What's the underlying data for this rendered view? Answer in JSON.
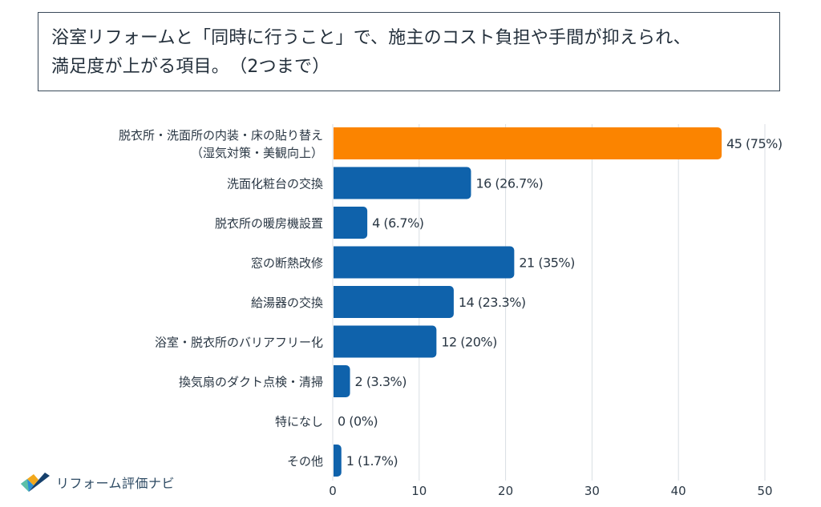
{
  "title": {
    "line1": "浴室リフォームと「同時に行うこと」で、施主のコスト負担や手間が抑えられ、",
    "line2": "満足度が上がる項目。　（2つまで）"
  },
  "logo": {
    "text": "リフォーム評価ナビ",
    "icon": "check-leaf-icon"
  },
  "colors": {
    "highlight": "#fb8400",
    "bar": "#0f62ab",
    "grid": "#d9dee3",
    "label": "#2a3744"
  },
  "chart_data": {
    "type": "bar",
    "orientation": "horizontal",
    "title": "浴室リフォームと「同時に行うこと」で、施主のコスト負担や手間が抑えられ、満足度が上がる項目。　（2つまで）",
    "categories": [
      [
        "脱衣所・洗面所の内装・床の貼り替え",
        "（湿気対策・美観向上）"
      ],
      [
        "洗面化粧台の交換"
      ],
      [
        "脱衣所の暖房機設置"
      ],
      [
        "窓の断熱改修"
      ],
      [
        "給湯器の交換"
      ],
      [
        "浴室・脱衣所のバリアフリー化"
      ],
      [
        "換気扇のダクト点検・清掃"
      ],
      [
        "特になし"
      ],
      [
        "その他"
      ]
    ],
    "values": [
      45,
      16,
      4,
      21,
      14,
      12,
      2,
      0,
      1
    ],
    "value_labels": [
      "45 (75%)",
      "16 (26.7%)",
      "4 (6.7%)",
      "21 (35%)",
      "14 (23.3%)",
      "12 (20%)",
      "2 (3.3%)",
      "0 (0%)",
      "1 (1.7%)"
    ],
    "highlight_index": 0,
    "xlim": [
      0,
      50
    ],
    "xticks": [
      0,
      10,
      20,
      30,
      40,
      50
    ],
    "grid": true
  }
}
